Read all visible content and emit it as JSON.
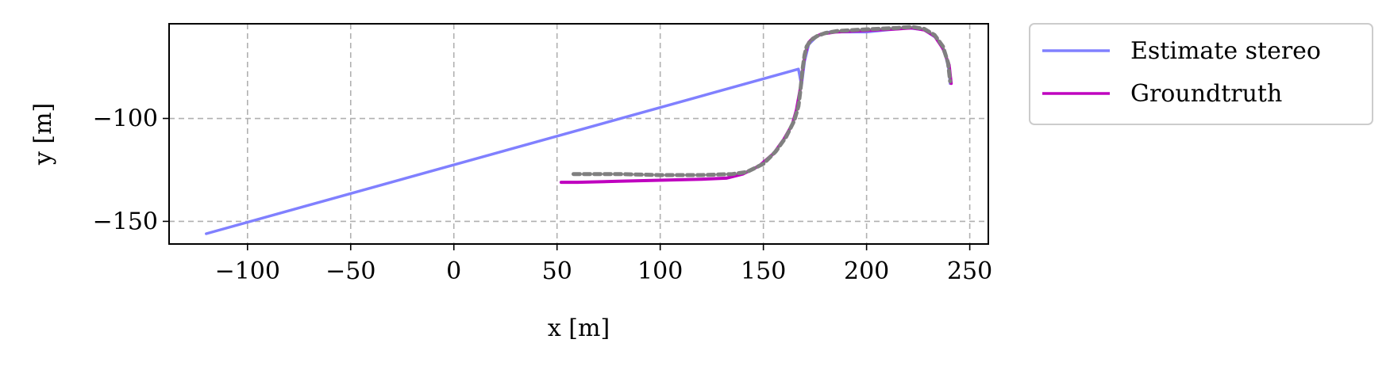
{
  "chart_data": {
    "type": "line",
    "title": "",
    "xlabel": "x [m]",
    "ylabel": "y [m]",
    "xlim": [
      -138,
      259
    ],
    "ylim": [
      -161,
      -54
    ],
    "xticks": [
      -100,
      -50,
      0,
      50,
      100,
      150,
      200,
      250
    ],
    "xtick_labels": [
      "−100",
      "−50",
      "0",
      "50",
      "100",
      "150",
      "200",
      "250"
    ],
    "yticks": [
      -100,
      -150
    ],
    "ytick_labels": [
      "−100",
      "−150"
    ],
    "grid": true,
    "legend_placement": "outside-top-right",
    "series": [
      {
        "name": "Estimate stereo",
        "color": "#8080ff",
        "x": [
          -120,
          167,
          168.5,
          170,
          172,
          176,
          182,
          190,
          200,
          210,
          220,
          228,
          234,
          238,
          240,
          240.5
        ],
        "y": [
          -156,
          -76,
          -84,
          -72,
          -64,
          -60,
          -58,
          -58,
          -58,
          -57,
          -56,
          -57,
          -61,
          -68,
          -77,
          -83
        ]
      },
      {
        "name": "Groundtruth",
        "color": "#bf00bf",
        "x": [
          52,
          60,
          80,
          100,
          120,
          132,
          140,
          148,
          155,
          160,
          164,
          166,
          168,
          169,
          170,
          171,
          172,
          174,
          178,
          185,
          195,
          205,
          215,
          222,
          228,
          233,
          237,
          240,
          241
        ],
        "y": [
          -131,
          -131,
          -130.5,
          -130,
          -129.5,
          -129,
          -127,
          -123,
          -117,
          -110,
          -103,
          -96,
          -85,
          -77,
          -70,
          -66,
          -63,
          -61,
          -59,
          -58,
          -57.5,
          -57,
          -56.5,
          -56,
          -57,
          -60,
          -66,
          -74,
          -83
        ]
      },
      {
        "name": "",
        "color": "#808080",
        "x": [
          58,
          80,
          100,
          120,
          135,
          142,
          150,
          156,
          161,
          165,
          167,
          168,
          169,
          170,
          171,
          173,
          176,
          180,
          186,
          195,
          205,
          215,
          222,
          228,
          233,
          237,
          239.5,
          240.5
        ],
        "y": [
          -127,
          -127,
          -127.5,
          -127.5,
          -127,
          -126,
          -122,
          -116,
          -109,
          -101,
          -94,
          -86,
          -76,
          -69,
          -65,
          -62,
          -60,
          -58.5,
          -57.5,
          -57,
          -56.5,
          -56,
          -55.5,
          -56.5,
          -59.5,
          -65,
          -73,
          -82
        ]
      }
    ]
  }
}
